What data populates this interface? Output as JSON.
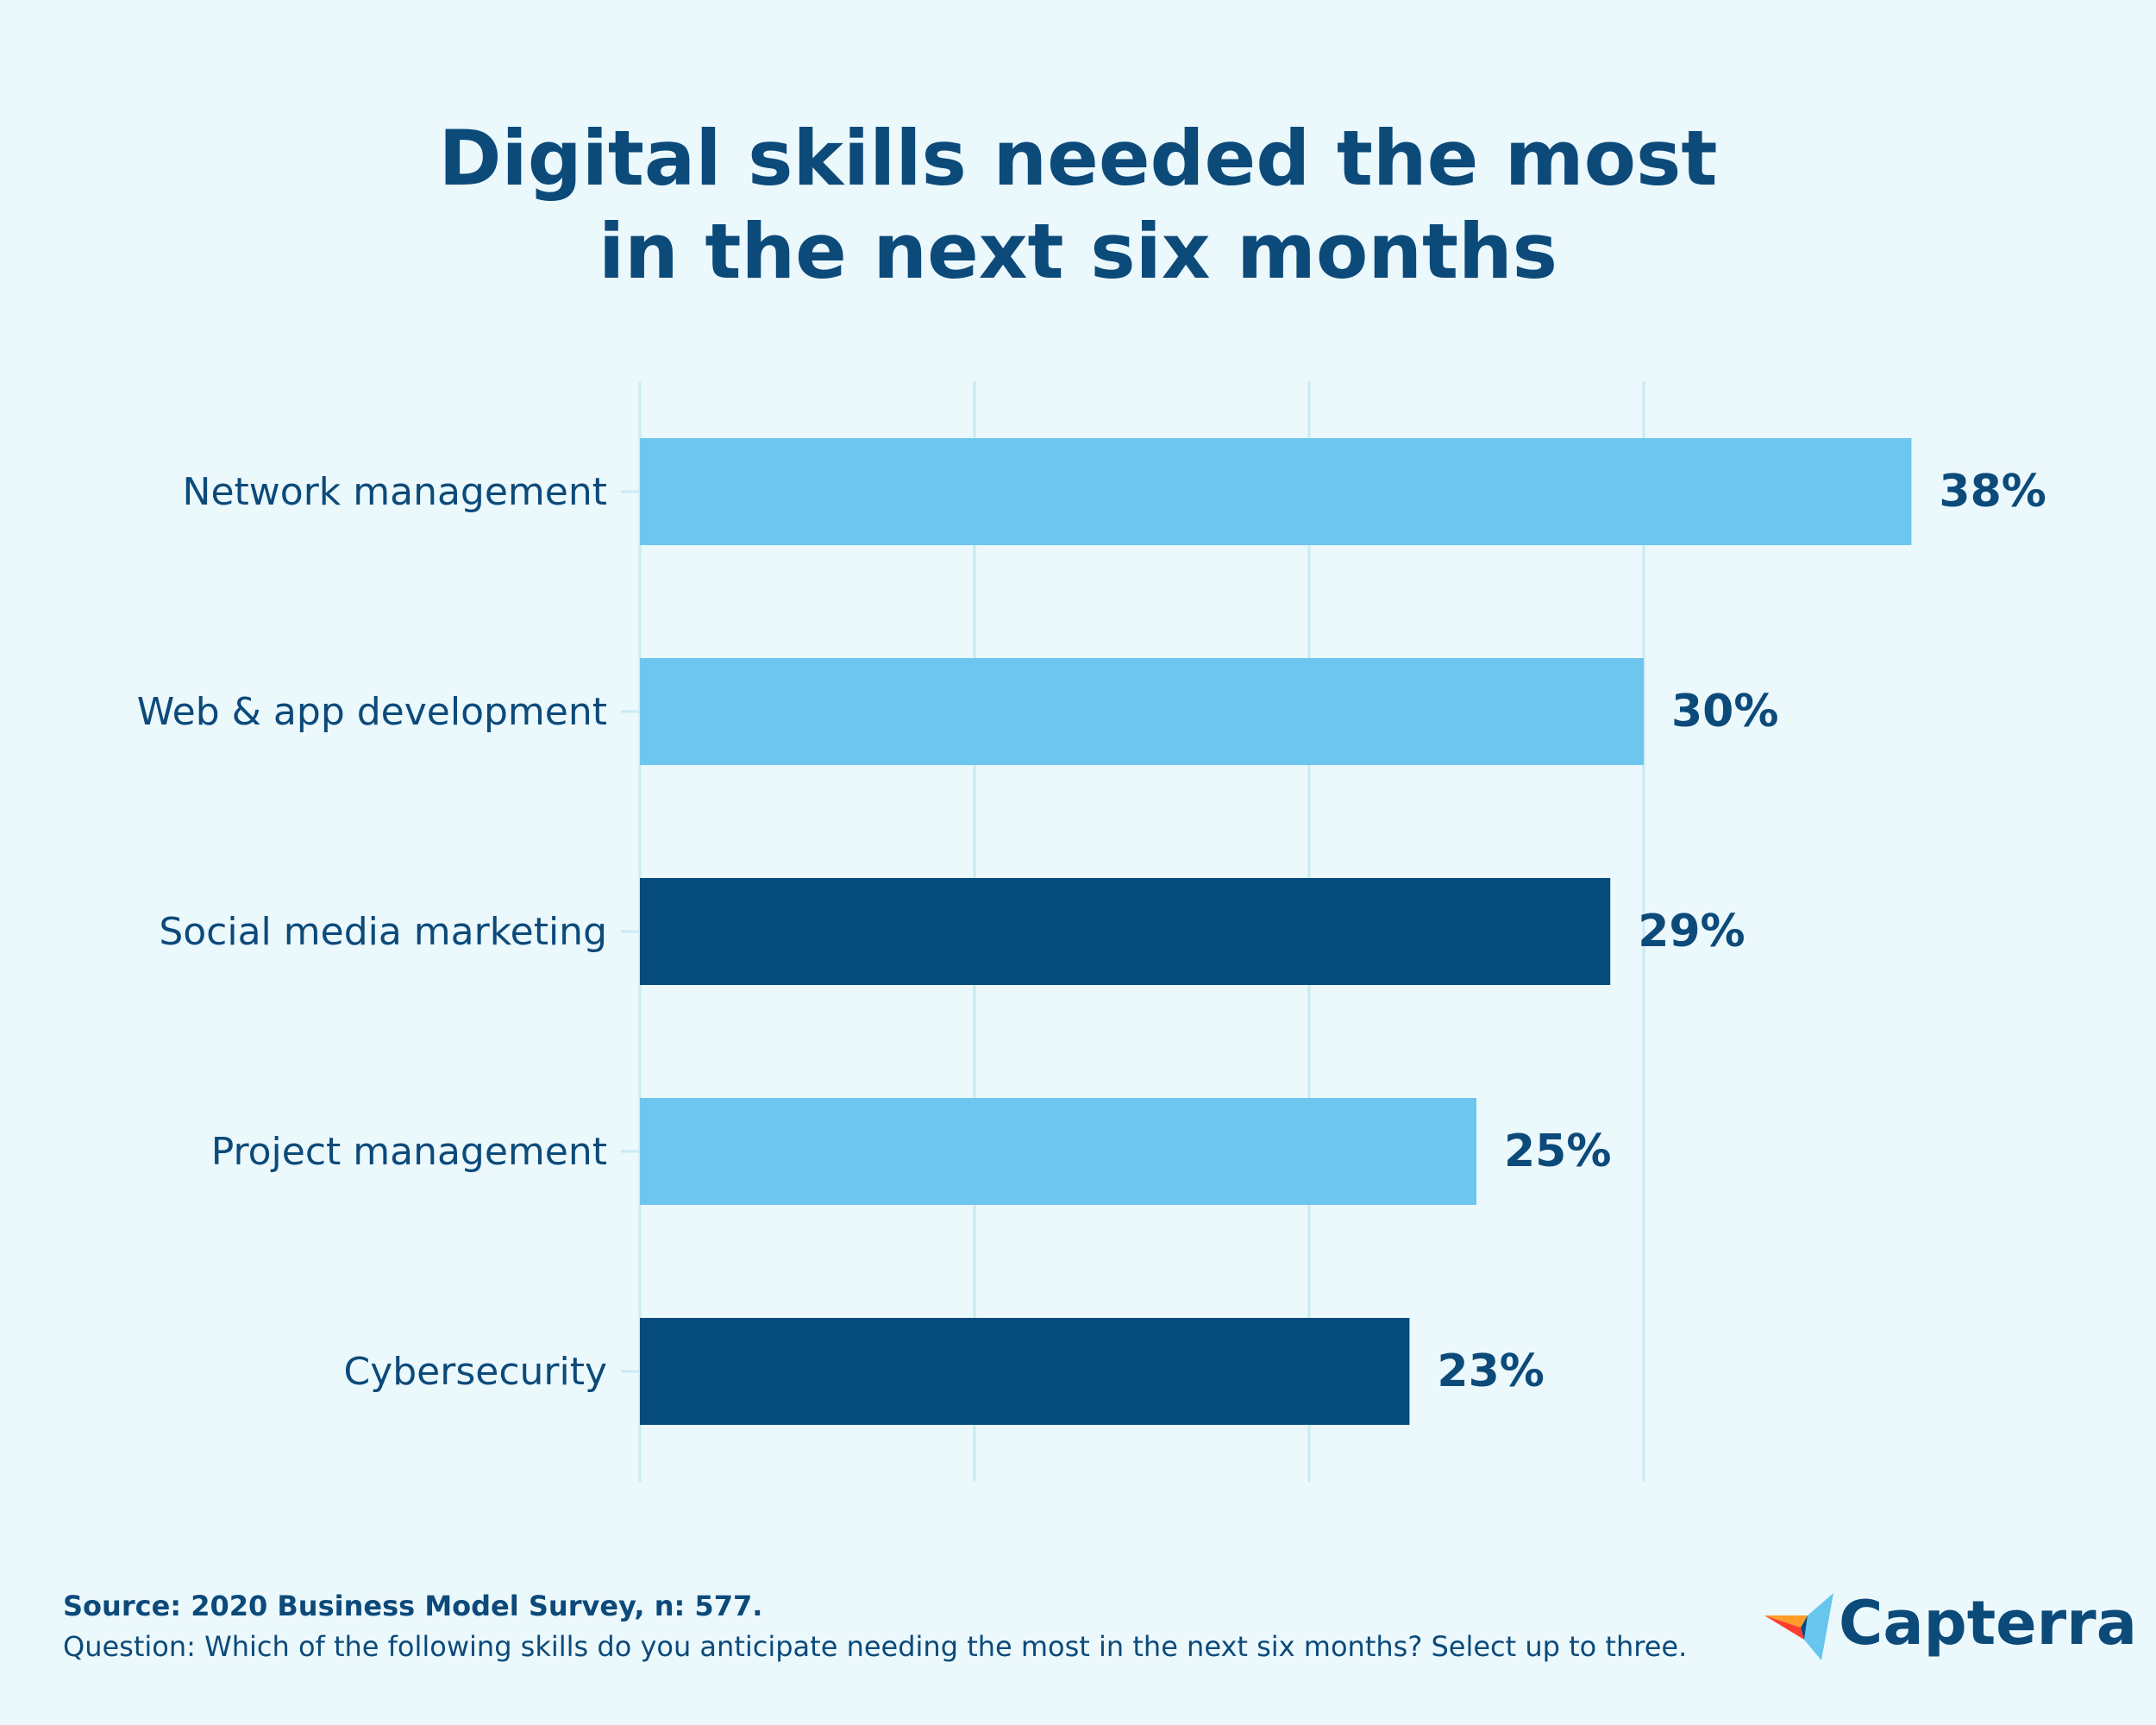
{
  "title_line1": "Digital skills needed the most",
  "title_line2": "in the next six months",
  "chart_data": {
    "type": "bar",
    "orientation": "horizontal",
    "title": "Digital skills needed the most in the next six months",
    "categories": [
      "Network management",
      "Web & app development",
      "Social media marketing",
      "Project management",
      "Cybersecurity"
    ],
    "values": [
      38,
      30,
      29,
      25,
      23
    ],
    "value_labels": [
      "38%",
      "30%",
      "29%",
      "25%",
      "23%"
    ],
    "unit": "%",
    "xlim": [
      0,
      40
    ],
    "grid_step": 10,
    "grid": true,
    "xlabel": "",
    "ylabel": "",
    "bar_colors": [
      "#6cc6ee",
      "#6cc6ee",
      "#054b7c",
      "#6cc6ee",
      "#054b7c"
    ],
    "label_color": "#0c4a7a",
    "grid_color": "#c9ebf3"
  },
  "footer": {
    "source": "Source: 2020 Business Model Survey, n: 577.",
    "question": "Question: Which of the following skills do you anticipate needing the most in the next six months? Select up to three."
  },
  "logo": {
    "text": "Capterra",
    "icon": "capterra-logo-icon"
  }
}
